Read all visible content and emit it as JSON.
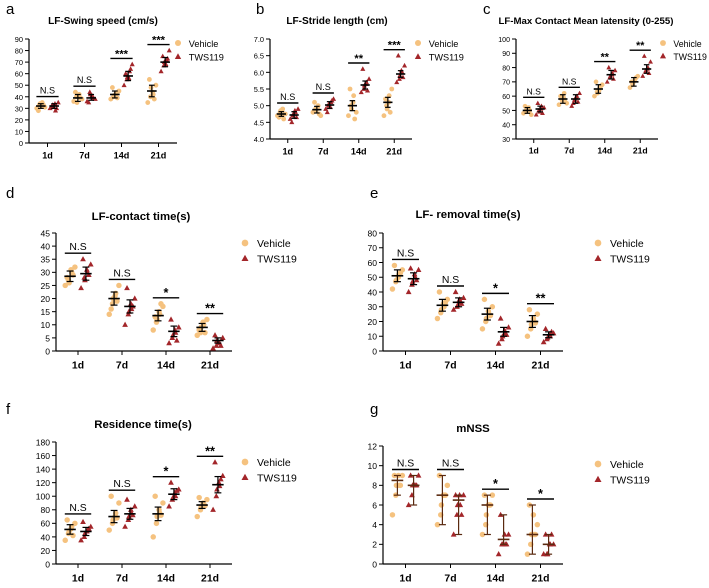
{
  "legend_labels": [
    "Vehicle",
    "TWS119"
  ],
  "colors": {
    "vehicle": "#F5C27F",
    "tws": "#A3262A",
    "axis": "#000000",
    "mean": "#000000"
  },
  "chart_data": [
    {
      "panel": "a",
      "type": "scatter",
      "title": "LF-Swing speed (cm/s)",
      "categories": [
        "1d",
        "7d",
        "14d",
        "21d"
      ],
      "ylim": [
        0,
        90
      ],
      "yticks": [
        0,
        10,
        20,
        30,
        40,
        50,
        60,
        70,
        80,
        90
      ],
      "style": "mean_sem",
      "series": [
        {
          "name": "Vehicle",
          "center": [
            32,
            39,
            42,
            45
          ],
          "low": [
            30,
            36,
            39,
            40
          ],
          "high": [
            34,
            42,
            45,
            50
          ],
          "points": [
            [
              30,
              33,
              35,
              31,
              28,
              34,
              32,
              33
            ],
            [
              36,
              40,
              42,
              38,
              44,
              35,
              41,
              39
            ],
            [
              38,
              40,
              43,
              45,
              48,
              41,
              42,
              39
            ],
            [
              35,
              40,
              42,
              50,
              55,
              48,
              44,
              38
            ]
          ]
        },
        {
          "name": "TWS119",
          "center": [
            32,
            39,
            58,
            70
          ],
          "low": [
            30,
            37,
            54,
            66
          ],
          "high": [
            34,
            42,
            62,
            74
          ],
          "points": [
            [
              30,
              33,
              28,
              35,
              32,
              31,
              34,
              30
            ],
            [
              36,
              44,
              40,
              38,
              35,
              42,
              41,
              39
            ],
            [
              50,
              55,
              62,
              68,
              60,
              57,
              56,
              64
            ],
            [
              62,
              67,
              72,
              80,
              75,
              70,
              68,
              73
            ]
          ]
        }
      ],
      "annotations": [
        "N.S",
        "N.S",
        "***",
        "***"
      ],
      "legend_position": "top-right"
    },
    {
      "panel": "b",
      "type": "scatter",
      "title": "LF-Stride length (cm)",
      "categories": [
        "1d",
        "7d",
        "14d",
        "21d"
      ],
      "ylim": [
        4.0,
        7.0
      ],
      "yticks": [
        "4.0",
        "4.5",
        "5.0",
        "5.5",
        "6.0",
        "6.5",
        "7.0"
      ],
      "style": "mean_sem",
      "series": [
        {
          "name": "Vehicle",
          "center": [
            4.75,
            4.88,
            5.0,
            5.1
          ],
          "low": [
            4.68,
            4.78,
            4.85,
            4.95
          ],
          "high": [
            4.82,
            4.98,
            5.15,
            5.25
          ],
          "points": [
            [
              4.7,
              4.8,
              4.9,
              4.75,
              4.65,
              4.85,
              4.72,
              4.6
            ],
            [
              4.8,
              4.9,
              5.0,
              4.7,
              5.1,
              4.85,
              4.95,
              4.75
            ],
            [
              4.7,
              5.0,
              5.3,
              4.8,
              5.5,
              4.9,
              5.1,
              4.6
            ],
            [
              4.7,
              5.0,
              5.3,
              5.5,
              5.2,
              4.9,
              5.1,
              4.8
            ]
          ]
        },
        {
          "name": "TWS119",
          "center": [
            4.72,
            5.02,
            5.62,
            5.95
          ],
          "low": [
            4.62,
            4.92,
            5.5,
            5.85
          ],
          "high": [
            4.82,
            5.12,
            5.74,
            6.05
          ],
          "points": [
            [
              4.6,
              4.7,
              4.8,
              4.9,
              4.5,
              4.75,
              4.85,
              4.65
            ],
            [
              4.9,
              5.0,
              5.1,
              5.2,
              4.8,
              5.05,
              4.95,
              5.15
            ],
            [
              5.4,
              5.5,
              5.7,
              5.8,
              6.1,
              5.6,
              5.65,
              5.45
            ],
            [
              5.7,
              5.8,
              6.0,
              6.2,
              6.5,
              5.9,
              6.05,
              5.85
            ]
          ]
        }
      ],
      "annotations": [
        "N.S",
        "N.S",
        "**",
        "***"
      ],
      "legend_position": "top-right"
    },
    {
      "panel": "c",
      "type": "scatter",
      "title": "LF-Max Contact Mean latensity (0-255)",
      "categories": [
        "1d",
        "7d",
        "14d",
        "21d"
      ],
      "ylim": [
        30,
        100
      ],
      "yticks": [
        30,
        40,
        50,
        60,
        70,
        80,
        90,
        100
      ],
      "style": "mean_sem",
      "series": [
        {
          "name": "Vehicle",
          "center": [
            50,
            58,
            65,
            70
          ],
          "low": [
            48,
            55,
            62,
            67
          ],
          "high": [
            52,
            61,
            68,
            73
          ],
          "points": [
            [
              48,
              50,
              52,
              47,
              53,
              49,
              51,
              50
            ],
            [
              54,
              58,
              62,
              55,
              60,
              57,
              59,
              56
            ],
            [
              60,
              63,
              66,
              68,
              70,
              62,
              64,
              67
            ],
            [
              66,
              68,
              72,
              74,
              70,
              69,
              71,
              73
            ]
          ]
        },
        {
          "name": "TWS119",
          "center": [
            51,
            58,
            75,
            79
          ],
          "low": [
            49,
            55,
            72,
            76
          ],
          "high": [
            53,
            61,
            78,
            82
          ],
          "points": [
            [
              47,
              50,
              53,
              52,
              55,
              49,
              51,
              48
            ],
            [
              53,
              57,
              60,
              62,
              55,
              58,
              59,
              56
            ],
            [
              70,
              73,
              76,
              78,
              80,
              74,
              75,
              72
            ],
            [
              74,
              77,
              80,
              84,
              88,
              78,
              79,
              76
            ]
          ]
        }
      ],
      "annotations": [
        "N.S",
        "N.S",
        "**",
        "**"
      ],
      "legend_position": "top-right"
    },
    {
      "panel": "d",
      "type": "scatter",
      "title": "LF-contact time(s)",
      "categories": [
        "1d",
        "7d",
        "14d",
        "21d"
      ],
      "ylim": [
        0,
        45
      ],
      "yticks": [
        0,
        5,
        10,
        15,
        20,
        25,
        30,
        35,
        40,
        45
      ],
      "style": "mean_sem",
      "series": [
        {
          "name": "Vehicle",
          "center": [
            28.5,
            20,
            13.5,
            9
          ],
          "low": [
            26.5,
            17.5,
            11.5,
            7.5
          ],
          "high": [
            30.5,
            22.5,
            15.5,
            10.5
          ],
          "points": [
            [
              25,
              27,
              30,
              32,
              28,
              26,
              31,
              29
            ],
            [
              14,
              18,
              22,
              25,
              16,
              20,
              21,
              19
            ],
            [
              8,
              11,
              14,
              17,
              13,
              12,
              15,
              18
            ],
            [
              6,
              7,
              10,
              12,
              8,
              9,
              11,
              7
            ]
          ]
        },
        {
          "name": "TWS119",
          "center": [
            29.5,
            17,
            7.5,
            4
          ],
          "low": [
            27,
            14.5,
            5.5,
            3
          ],
          "high": [
            32,
            19.5,
            9.5,
            5
          ],
          "points": [
            [
              24,
              28,
              30,
              33,
              35,
              27,
              31,
              29
            ],
            [
              10,
              14,
              16,
              20,
              24,
              15,
              18,
              17
            ],
            [
              3,
              5,
              7,
              9,
              12,
              6,
              8,
              4
            ],
            [
              1,
              2,
              3,
              5,
              6,
              4,
              3,
              2
            ]
          ]
        }
      ],
      "annotations": [
        "N.S",
        "N.S",
        "*",
        "**"
      ],
      "legend_position": "top-right"
    },
    {
      "panel": "e",
      "type": "scatter",
      "title": "LF- removal time(s)",
      "categories": [
        "1d",
        "7d",
        "14d",
        "21d"
      ],
      "ylim": [
        0,
        80
      ],
      "yticks": [
        0,
        10,
        20,
        30,
        40,
        50,
        60,
        70,
        80
      ],
      "style": "mean_sem",
      "series": [
        {
          "name": "Vehicle",
          "center": [
            51,
            31,
            25,
            20
          ],
          "low": [
            47,
            27,
            21,
            16
          ],
          "high": [
            55,
            35,
            29,
            24
          ],
          "points": [
            [
              42,
              47,
              52,
              55,
              58,
              48,
              50,
              53
            ],
            [
              22,
              26,
              30,
              35,
              40,
              28,
              32,
              33
            ],
            [
              15,
              20,
              25,
              30,
              35,
              22,
              27,
              24
            ],
            [
              10,
              15,
              20,
              25,
              28,
              18,
              22,
              19
            ]
          ]
        },
        {
          "name": "TWS119",
          "center": [
            49,
            33,
            13,
            11
          ],
          "low": [
            45,
            30,
            10,
            9
          ],
          "high": [
            53,
            36,
            16,
            13
          ],
          "points": [
            [
              40,
              45,
              50,
              55,
              56,
              47,
              52,
              48
            ],
            [
              28,
              30,
              33,
              36,
              40,
              31,
              35,
              32
            ],
            [
              5,
              8,
              12,
              16,
              22,
              10,
              14,
              11
            ],
            [
              6,
              8,
              10,
              12,
              15,
              9,
              11,
              13
            ]
          ]
        }
      ],
      "annotations": [
        "N.S",
        "N.S",
        "*",
        "**"
      ],
      "legend_position": "top-right"
    },
    {
      "panel": "f",
      "type": "scatter",
      "title": "Residence time(s)",
      "categories": [
        "1d",
        "7d",
        "14d",
        "21d"
      ],
      "ylim": [
        0,
        180
      ],
      "yticks": [
        0,
        20,
        40,
        60,
        80,
        100,
        120,
        140,
        160,
        180
      ],
      "style": "mean_sem",
      "series": [
        {
          "name": "Vehicle",
          "center": [
            51,
            70,
            74,
            87
          ],
          "low": [
            44,
            61,
            64,
            82
          ],
          "high": [
            58,
            79,
            84,
            92
          ],
          "points": [
            [
              35,
              45,
              55,
              60,
              65,
              48,
              52,
              42
            ],
            [
              50,
              60,
              75,
              90,
              100,
              65,
              70,
              68
            ],
            [
              40,
              60,
              75,
              90,
              100,
              70,
              80,
              72
            ],
            [
              70,
              80,
              88,
              95,
              98,
              84,
              90,
              86
            ]
          ]
        },
        {
          "name": "TWS119",
          "center": [
            48,
            74,
            103,
            117
          ],
          "low": [
            42,
            66,
            95,
            105
          ],
          "high": [
            54,
            82,
            111,
            129
          ],
          "points": [
            [
              35,
              40,
              50,
              55,
              62,
              45,
              48,
              52
            ],
            [
              55,
              65,
              75,
              85,
              95,
              70,
              80,
              72
            ],
            [
              85,
              95,
              100,
              110,
              120,
              98,
              105,
              108
            ],
            [
              80,
              100,
              115,
              130,
              150,
              110,
              120,
              125
            ]
          ]
        }
      ],
      "annotations": [
        "N.S",
        "N.S",
        "*",
        "**"
      ],
      "legend_position": "top-right"
    },
    {
      "panel": "g",
      "type": "scatter",
      "title": "mNSS",
      "categories": [
        "1d",
        "7d",
        "14d",
        "21d"
      ],
      "ylim": [
        0,
        12
      ],
      "yticks": [
        0,
        2,
        4,
        6,
        8,
        10,
        12
      ],
      "style": "median_range",
      "series": [
        {
          "name": "Vehicle",
          "center": [
            8.5,
            7,
            6,
            3
          ],
          "low": [
            7,
            4,
            3,
            1
          ],
          "high": [
            9,
            9,
            7,
            6
          ],
          "points": [
            [
              5,
              7,
              8,
              9,
              9,
              8,
              9,
              8
            ],
            [
              4,
              5,
              7,
              8,
              9,
              6,
              7,
              7
            ],
            [
              3,
              4,
              6,
              7,
              7,
              5,
              6,
              6
            ],
            [
              1,
              2,
              3,
              4,
              6,
              3,
              5,
              3
            ]
          ]
        },
        {
          "name": "TWS119",
          "center": [
            8,
            6.5,
            2.5,
            2
          ],
          "low": [
            6,
            3,
            2,
            1
          ],
          "high": [
            9,
            7,
            5,
            3
          ],
          "points": [
            [
              6,
              7,
              8,
              9,
              9,
              8,
              8,
              8
            ],
            [
              3,
              5,
              6,
              7,
              7,
              6,
              7,
              5
            ],
            [
              1,
              2,
              2,
              3,
              5,
              2,
              3,
              2
            ],
            [
              1,
              1,
              2,
              2,
              3,
              1,
              2,
              3
            ]
          ]
        }
      ],
      "annotations": [
        "N.S",
        "N.S",
        "*",
        "*"
      ],
      "legend_position": "top-right"
    }
  ]
}
